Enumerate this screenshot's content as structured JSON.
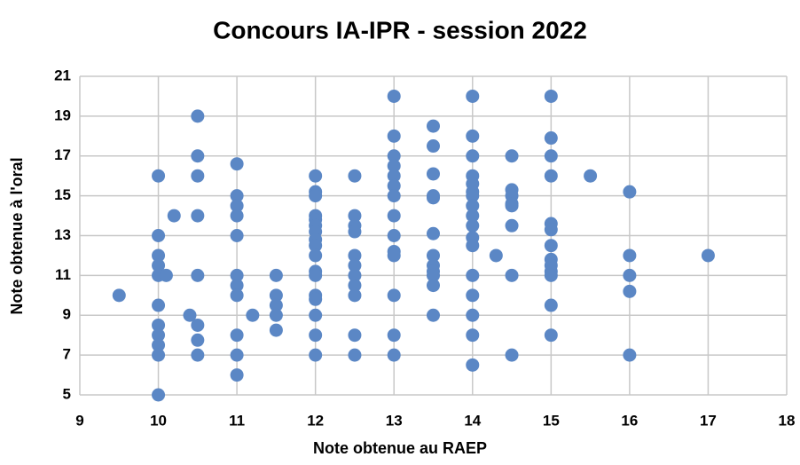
{
  "chart_data": {
    "type": "scatter",
    "title": "Concours IA-IPR - session 2022",
    "x_label": "Note obtenue au RAEP",
    "y_label": "Note obtenue à l'oral",
    "color": "#5b87c5",
    "grid": true,
    "xlim": [
      9,
      18
    ],
    "xticks": [
      9,
      10,
      11,
      12,
      13,
      14,
      15,
      16,
      17,
      18
    ],
    "ylim": [
      5,
      21
    ],
    "yticks": [
      5,
      7,
      9,
      11,
      13,
      15,
      17,
      19,
      21
    ],
    "x": [
      9.5,
      10,
      10,
      10,
      10,
      10,
      10,
      10,
      10,
      10,
      10,
      10,
      10.1,
      10.2,
      10.4,
      10.5,
      10.5,
      10.5,
      10.5,
      10.5,
      10.5,
      10.5,
      10.5,
      11,
      11,
      11,
      11,
      11,
      11,
      11,
      11,
      11,
      11,
      11,
      11.2,
      11.5,
      11.5,
      11.5,
      11.5,
      11.5,
      12,
      12,
      12,
      12,
      12,
      12,
      12,
      12,
      12,
      12,
      12,
      12,
      12,
      12,
      12,
      12,
      12,
      12.5,
      12.5,
      12.5,
      12.5,
      12.5,
      12.5,
      12.5,
      12.5,
      12.5,
      12.5,
      12.5,
      13,
      13,
      13,
      13,
      13,
      13,
      13,
      13,
      13,
      13,
      13,
      13,
      13,
      13,
      13.5,
      13.5,
      13.5,
      13.5,
      13.5,
      13.5,
      13.5,
      13.5,
      13.5,
      13.5,
      13.5,
      13.5,
      14,
      14,
      14,
      14,
      14,
      14,
      14,
      14,
      14,
      14,
      14,
      14,
      14,
      14,
      14,
      14,
      14,
      14.3,
      14.5,
      14.5,
      14.5,
      14.5,
      14.5,
      14.5,
      14.5,
      14.5,
      15,
      15,
      15,
      15,
      15,
      15,
      15,
      15,
      15,
      15,
      15,
      15,
      15,
      15.5,
      16,
      16,
      16,
      16,
      16,
      17
    ],
    "y": [
      10,
      16,
      13,
      12,
      11.5,
      11,
      9.5,
      8.5,
      8,
      7.5,
      7,
      5,
      11,
      14,
      9,
      19,
      17,
      16,
      14,
      11,
      8.5,
      7.75,
      7,
      16.6,
      15,
      14.5,
      14,
      13,
      11,
      10.5,
      10,
      8,
      7,
      6,
      9,
      11,
      10,
      9.5,
      9,
      8.25,
      16,
      15.2,
      15,
      14,
      13.8,
      13.5,
      13.2,
      12.8,
      12.5,
      12,
      11.2,
      11,
      10,
      9.8,
      9,
      8,
      7,
      16,
      14,
      13.5,
      13.2,
      12,
      11.5,
      11,
      10.5,
      10,
      8,
      7,
      20,
      18,
      17,
      16.5,
      16,
      15.5,
      15,
      14,
      13,
      12.2,
      12,
      10,
      8,
      7,
      18.5,
      17.5,
      16.1,
      15,
      14.9,
      13.1,
      12,
      11.5,
      11.2,
      11,
      10.5,
      9,
      20,
      18,
      17,
      16,
      15.6,
      15.2,
      15,
      14.5,
      14,
      13.5,
      12.9,
      12.5,
      11,
      10,
      9,
      8,
      6.5,
      12,
      17,
      15.3,
      15,
      14.6,
      14.5,
      13.5,
      11,
      7,
      20,
      17.9,
      17,
      16,
      13.6,
      13.3,
      12.5,
      11.8,
      11.5,
      11.2,
      11,
      9.5,
      8,
      16,
      15.2,
      12,
      11,
      10.2,
      7,
      12
    ]
  }
}
